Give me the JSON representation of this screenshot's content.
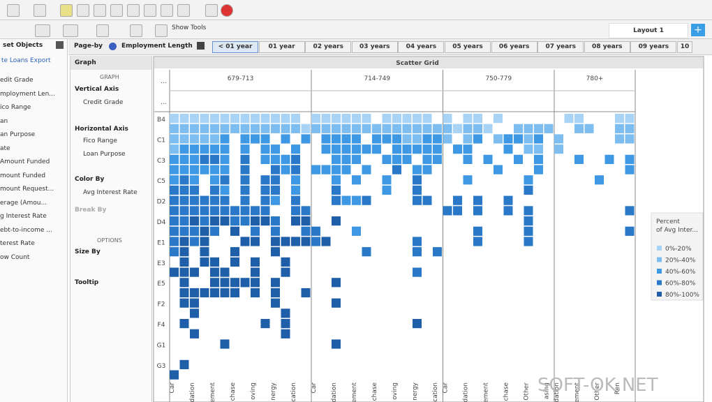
{
  "toolbar": {
    "show_tools": "Show Tools",
    "layout": "Layout 1"
  },
  "left_panel": {
    "title": "set Objects",
    "dataset": "te Loans Export",
    "items": [
      "edit Grade",
      "mployment Len...",
      "ico Range",
      "an",
      "an Purpose",
      "ate",
      "Amount Funded",
      "mount Funded",
      "mount Request...",
      "erage (Amou...",
      "g Interest Rate",
      "ebt-to-income ...",
      "terest Rate",
      "ow Count"
    ]
  },
  "page_by": {
    "label": "Page-by",
    "field": "Employment Length",
    "tabs": [
      "< 01 year",
      "01 year",
      "02 years",
      "03 years",
      "04 years",
      "05 years",
      "06 years",
      "07 years",
      "08 years",
      "09 years",
      "10"
    ]
  },
  "graph_panel": {
    "title": "Graph",
    "graph_section": "GRAPH",
    "vertical_axis": "Vertical Axis",
    "vertical_field": "Credit Grade",
    "horizontal_axis": "Horizontal Axis",
    "horizontal_fields": [
      "Fico Range",
      "Loan Purpose"
    ],
    "color_by": "Color By",
    "color_field": "Avg Interest Rate",
    "break_by": "Break By",
    "options_section": "OPTIONS",
    "size_by": "Size By",
    "tooltip": "Tooltip"
  },
  "grid": {
    "title": "Scatter Grid",
    "corner": [
      "...",
      "..."
    ],
    "column_groups": [
      "679-713",
      "714-749",
      "750-779",
      "780+"
    ],
    "group_sizes": [
      14,
      13,
      11,
      8
    ],
    "x_labels": [
      [
        "Car",
        "dation",
        "ement",
        "chase",
        "oving",
        "nergy",
        "cation"
      ],
      [
        "Car",
        "dation",
        "ement",
        "chase",
        "oving",
        "nergy",
        "cation"
      ],
      [
        "Car",
        "dation",
        "ement",
        "chase",
        "Other",
        "asing"
      ],
      [
        "dation",
        "ement",
        "Other",
        "Ren"
      ]
    ],
    "row_labels": [
      "B4",
      null,
      "C1",
      null,
      "C3",
      null,
      "C5",
      null,
      "D2",
      null,
      "D4",
      null,
      "E1",
      null,
      "E3",
      null,
      "E5",
      null,
      "F2",
      null,
      "F4",
      null,
      "G1",
      null,
      "G3"
    ],
    "levels": [
      [
        1,
        1,
        1,
        1,
        1,
        1,
        1,
        1,
        1,
        1,
        1,
        1,
        1,
        0,
        1,
        1,
        1,
        1,
        1,
        1,
        0,
        1,
        1,
        1,
        1,
        1,
        0,
        1,
        0,
        1,
        1,
        0,
        1,
        0,
        0,
        0,
        0,
        0,
        0,
        1,
        1,
        0,
        0,
        0,
        1,
        1
      ],
      [
        2,
        2,
        2,
        2,
        2,
        2,
        2,
        2,
        2,
        2,
        2,
        2,
        2,
        1,
        2,
        2,
        2,
        2,
        2,
        2,
        2,
        2,
        2,
        2,
        2,
        2,
        2,
        2,
        1,
        2,
        2,
        1,
        0,
        0,
        2,
        2,
        2,
        2,
        0,
        0,
        2,
        2,
        0,
        0,
        2,
        2
      ],
      [
        2,
        2,
        2,
        2,
        2,
        3,
        0,
        3,
        3,
        3,
        0,
        3,
        0,
        3,
        0,
        3,
        3,
        3,
        3,
        0,
        3,
        3,
        3,
        2,
        2,
        3,
        3,
        2,
        0,
        2,
        3,
        0,
        2,
        3,
        3,
        2,
        3,
        0,
        2,
        0,
        0,
        0,
        0,
        0,
        2,
        2
      ],
      [
        2,
        3,
        3,
        3,
        3,
        3,
        0,
        3,
        0,
        3,
        3,
        0,
        3,
        0,
        0,
        3,
        3,
        3,
        3,
        3,
        3,
        0,
        3,
        3,
        3,
        3,
        3,
        0,
        3,
        3,
        0,
        0,
        0,
        3,
        0,
        2,
        2,
        0,
        2,
        0,
        0,
        0,
        0,
        0,
        0,
        0
      ],
      [
        3,
        3,
        3,
        4,
        4,
        3,
        0,
        4,
        0,
        3,
        3,
        3,
        4,
        0,
        0,
        0,
        3,
        3,
        3,
        0,
        0,
        3,
        3,
        3,
        0,
        3,
        3,
        0,
        0,
        3,
        0,
        3,
        0,
        0,
        3,
        0,
        3,
        0,
        0,
        0,
        3,
        0,
        0,
        3,
        0,
        3
      ],
      [
        3,
        3,
        3,
        3,
        3,
        3,
        0,
        4,
        0,
        0,
        4,
        3,
        4,
        0,
        3,
        3,
        3,
        3,
        0,
        3,
        0,
        0,
        4,
        0,
        3,
        3,
        0,
        0,
        0,
        0,
        0,
        0,
        3,
        0,
        0,
        0,
        3,
        0,
        0,
        0,
        0,
        0,
        0,
        0,
        0,
        3
      ],
      [
        3,
        4,
        3,
        0,
        3,
        4,
        0,
        4,
        0,
        4,
        4,
        0,
        3,
        0,
        0,
        0,
        3,
        0,
        3,
        0,
        0,
        3,
        0,
        0,
        4,
        0,
        0,
        0,
        0,
        3,
        0,
        0,
        0,
        0,
        0,
        3,
        0,
        0,
        0,
        0,
        0,
        0,
        3,
        0,
        0,
        0
      ],
      [
        4,
        4,
        4,
        0,
        4,
        3,
        0,
        4,
        0,
        4,
        4,
        0,
        3,
        0,
        0,
        0,
        4,
        0,
        0,
        0,
        0,
        3,
        0,
        0,
        4,
        0,
        0,
        0,
        0,
        0,
        0,
        0,
        0,
        0,
        0,
        4,
        0,
        0,
        0,
        0,
        0,
        0,
        0,
        0,
        0,
        0
      ],
      [
        4,
        4,
        4,
        4,
        4,
        4,
        0,
        4,
        0,
        4,
        3,
        0,
        4,
        0,
        0,
        0,
        4,
        3,
        3,
        4,
        0,
        0,
        0,
        0,
        4,
        4,
        0,
        0,
        4,
        0,
        4,
        0,
        0,
        4,
        0,
        0,
        0,
        0,
        0,
        0,
        0,
        0,
        0,
        0,
        0,
        0
      ],
      [
        4,
        4,
        4,
        4,
        4,
        4,
        4,
        4,
        4,
        4,
        0,
        0,
        4,
        4,
        0,
        0,
        0,
        0,
        0,
        0,
        0,
        0,
        0,
        0,
        0,
        0,
        0,
        4,
        4,
        0,
        4,
        0,
        0,
        4,
        0,
        4,
        0,
        0,
        0,
        0,
        0,
        0,
        0,
        0,
        0,
        4
      ],
      [
        4,
        4,
        5,
        4,
        5,
        5,
        4,
        4,
        5,
        5,
        4,
        0,
        5,
        5,
        0,
        0,
        5,
        0,
        0,
        0,
        0,
        0,
        0,
        0,
        0,
        0,
        0,
        0,
        0,
        0,
        0,
        0,
        0,
        0,
        0,
        4,
        0,
        0,
        0,
        0,
        0,
        0,
        0,
        0,
        0,
        0
      ],
      [
        4,
        4,
        4,
        5,
        4,
        0,
        5,
        0,
        4,
        0,
        4,
        0,
        0,
        4,
        4,
        0,
        0,
        0,
        3,
        0,
        0,
        0,
        0,
        0,
        0,
        0,
        0,
        0,
        0,
        0,
        4,
        0,
        0,
        0,
        0,
        4,
        0,
        0,
        0,
        0,
        0,
        0,
        0,
        0,
        0,
        4
      ],
      [
        4,
        5,
        4,
        5,
        0,
        0,
        0,
        5,
        5,
        0,
        5,
        5,
        5,
        5,
        4,
        5,
        0,
        0,
        0,
        0,
        0,
        0,
        0,
        0,
        4,
        0,
        0,
        0,
        0,
        0,
        4,
        0,
        0,
        0,
        0,
        4,
        0,
        0,
        0,
        0,
        0,
        0,
        0,
        0,
        0,
        0
      ],
      [
        4,
        5,
        0,
        5,
        0,
        0,
        5,
        0,
        0,
        0,
        5,
        0,
        0,
        0,
        0,
        0,
        0,
        0,
        0,
        4,
        0,
        0,
        0,
        0,
        4,
        0,
        4,
        0,
        0,
        0,
        0,
        0,
        0,
        0,
        0,
        0,
        0,
        0,
        0,
        0,
        0,
        0,
        0,
        0,
        0,
        0
      ],
      [
        0,
        5,
        0,
        5,
        5,
        0,
        5,
        0,
        5,
        0,
        0,
        5,
        0,
        0,
        0,
        0,
        0,
        0,
        0,
        0,
        0,
        0,
        0,
        0,
        0,
        0,
        0,
        0,
        0,
        0,
        0,
        0,
        0,
        0,
        0,
        0,
        0,
        0,
        0,
        0,
        0,
        0,
        0,
        0,
        0,
        0
      ],
      [
        5,
        5,
        5,
        0,
        5,
        5,
        0,
        0,
        5,
        0,
        0,
        5,
        0,
        0,
        0,
        0,
        0,
        0,
        0,
        0,
        0,
        0,
        0,
        0,
        4,
        0,
        0,
        0,
        0,
        0,
        0,
        0,
        0,
        0,
        0,
        0,
        0,
        0,
        0,
        0,
        0,
        0,
        0,
        0,
        0,
        0
      ],
      [
        0,
        5,
        0,
        0,
        5,
        5,
        5,
        5,
        5,
        0,
        5,
        0,
        0,
        0,
        0,
        0,
        5,
        0,
        0,
        0,
        0,
        0,
        0,
        0,
        0,
        0,
        0,
        0,
        0,
        0,
        0,
        0,
        0,
        0,
        0,
        0,
        0,
        0,
        0,
        0,
        0,
        0,
        0,
        0,
        0,
        0
      ],
      [
        0,
        5,
        5,
        5,
        5,
        5,
        5,
        0,
        5,
        0,
        5,
        0,
        0,
        5,
        0,
        0,
        0,
        0,
        0,
        0,
        0,
        0,
        0,
        0,
        0,
        0,
        0,
        0,
        0,
        0,
        0,
        0,
        0,
        0,
        0,
        0,
        0,
        0,
        0,
        0,
        0,
        0,
        0,
        0,
        0,
        0
      ],
      [
        0,
        5,
        5,
        0,
        0,
        0,
        0,
        0,
        0,
        0,
        5,
        0,
        0,
        0,
        0,
        0,
        5,
        0,
        0,
        0,
        0,
        0,
        0,
        0,
        0,
        0,
        0,
        0,
        0,
        0,
        0,
        0,
        0,
        0,
        0,
        0,
        0,
        0,
        0,
        0,
        0,
        0,
        0,
        0,
        0,
        0
      ],
      [
        0,
        0,
        5,
        0,
        0,
        0,
        0,
        0,
        0,
        0,
        0,
        5,
        0,
        0,
        0,
        0,
        0,
        0,
        0,
        0,
        0,
        0,
        0,
        0,
        0,
        0,
        0,
        0,
        0,
        0,
        0,
        0,
        0,
        0,
        0,
        0,
        0,
        0,
        0,
        0,
        0,
        0,
        0,
        0,
        0,
        0
      ],
      [
        0,
        5,
        0,
        0,
        0,
        0,
        0,
        0,
        0,
        5,
        0,
        5,
        0,
        0,
        0,
        0,
        0,
        0,
        0,
        0,
        0,
        0,
        0,
        0,
        5,
        0,
        0,
        0,
        0,
        0,
        0,
        0,
        0,
        0,
        0,
        0,
        0,
        0,
        0,
        0,
        0,
        0,
        0,
        0,
        0,
        0
      ],
      [
        0,
        0,
        5,
        0,
        0,
        0,
        0,
        0,
        0,
        0,
        0,
        5,
        0,
        0,
        0,
        0,
        0,
        0,
        0,
        0,
        0,
        0,
        0,
        0,
        0,
        0,
        0,
        0,
        0,
        0,
        0,
        0,
        0,
        0,
        0,
        0,
        0,
        0,
        0,
        0,
        0,
        0,
        0,
        0,
        0,
        0
      ],
      [
        0,
        0,
        0,
        0,
        0,
        5,
        0,
        0,
        0,
        0,
        0,
        0,
        0,
        0,
        0,
        0,
        5,
        0,
        0,
        0,
        0,
        0,
        0,
        0,
        0,
        0,
        0,
        0,
        0,
        0,
        0,
        0,
        0,
        0,
        0,
        0,
        0,
        0,
        0,
        0,
        0,
        0,
        0,
        0,
        0,
        0
      ],
      [
        0,
        0,
        0,
        0,
        0,
        0,
        0,
        0,
        0,
        0,
        0,
        0,
        0,
        0,
        0,
        0,
        0,
        0,
        0,
        0,
        0,
        0,
        0,
        0,
        0,
        0,
        0,
        0,
        0,
        0,
        0,
        0,
        0,
        0,
        0,
        0,
        0,
        0,
        0,
        0,
        0,
        0,
        0,
        0,
        0,
        0
      ],
      [
        0,
        5,
        0,
        0,
        0,
        0,
        0,
        0,
        0,
        0,
        0,
        0,
        0,
        0,
        0,
        0,
        0,
        0,
        0,
        0,
        0,
        0,
        0,
        0,
        0,
        0,
        0,
        0,
        0,
        0,
        0,
        0,
        0,
        0,
        0,
        0,
        0,
        0,
        0,
        0,
        0,
        0,
        0,
        0,
        0,
        0
      ],
      [
        5,
        0,
        0,
        0,
        0,
        0,
        0,
        0,
        0,
        0,
        0,
        0,
        0,
        0,
        0,
        0,
        0,
        0,
        0,
        0,
        0,
        0,
        0,
        0,
        0,
        0,
        0,
        0,
        0,
        0,
        0,
        0,
        0,
        0,
        0,
        0,
        0,
        0,
        0,
        0,
        0,
        0,
        0,
        0,
        0,
        0
      ]
    ]
  },
  "legend": {
    "title": [
      "Percent",
      "of Avg Inter..."
    ],
    "items": [
      {
        "label": "0%-20%",
        "color": "#a9d3f5"
      },
      {
        "label": "20%-40%",
        "color": "#7dbdf0"
      },
      {
        "label": "40%-60%",
        "color": "#3f98e3"
      },
      {
        "label": "60%-80%",
        "color": "#2a78c8"
      },
      {
        "label": "80%-100%",
        "color": "#1f5ea8"
      }
    ]
  },
  "watermark": "SOFT-OK.NET"
}
